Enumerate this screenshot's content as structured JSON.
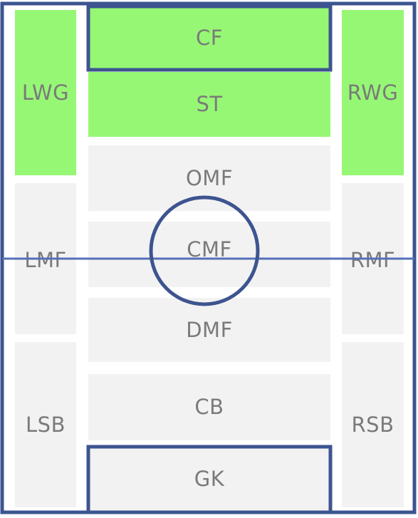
{
  "colors": {
    "active_zone": "#96f774",
    "inactive_zone": "#f2f2f2",
    "line": "#3d5490",
    "label": "#7a7a7a"
  },
  "zones": {
    "lwg": {
      "label": "LWG",
      "active": true
    },
    "lmf": {
      "label": "LMF",
      "active": false
    },
    "lsb": {
      "label": "LSB",
      "active": false
    },
    "cf": {
      "label": "CF",
      "active": true
    },
    "st": {
      "label": "ST",
      "active": true
    },
    "omf": {
      "label": "OMF",
      "active": false
    },
    "cmf": {
      "label": "CMF",
      "active": false
    },
    "dmf": {
      "label": "DMF",
      "active": false
    },
    "cb": {
      "label": "CB",
      "active": false
    },
    "gk": {
      "label": "GK",
      "active": false
    },
    "rwg": {
      "label": "RWG",
      "active": true
    },
    "rmf": {
      "label": "RMF",
      "active": false
    },
    "rsb": {
      "label": "RSB",
      "active": false
    }
  }
}
